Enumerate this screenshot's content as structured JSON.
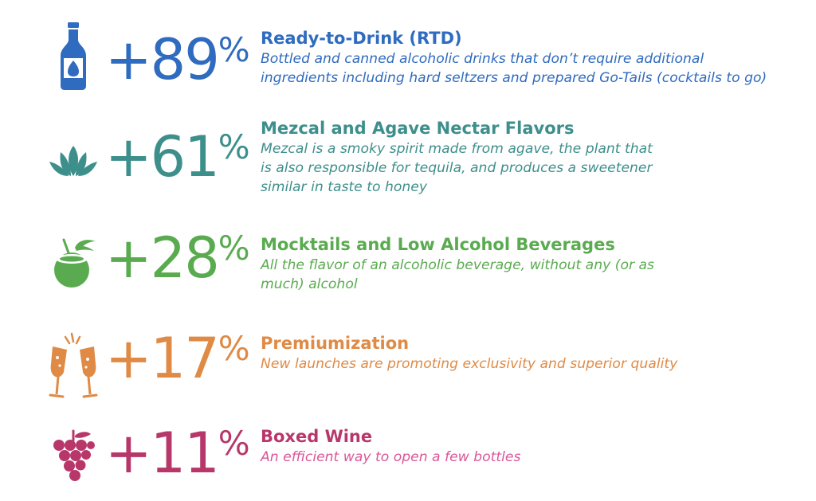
{
  "colors": {
    "rtd": "#2f6bbf",
    "mezcal": "#3d8f8c",
    "mocktails": "#5aab4f",
    "premium": "#df8a45",
    "wine": "#b8376a",
    "wine_desc": "#d9569a"
  },
  "trends": [
    {
      "icon": "bottle-icon",
      "value": "+89",
      "unit": "%",
      "title": "Ready-to-Drink (RTD)",
      "description": "Bottled and canned alcoholic drinks that don’t require additional ingredients including hard seltzers and prepared Go-Tails (cocktails to go)"
    },
    {
      "icon": "agave-icon",
      "value": "+61",
      "unit": "%",
      "title": "Mezcal and Agave Nectar Flavors",
      "description": "Mezcal is a smoky spirit made from agave, the plant that is also responsible for tequila, and produces a sweetener similar in taste to honey"
    },
    {
      "icon": "coconut-drink-icon",
      "value": "+28",
      "unit": "%",
      "title": "Mocktails and Low Alcohol Beverages",
      "description": "All the flavor of an alcoholic beverage, without any (or as much) alcohol"
    },
    {
      "icon": "champagne-toast-icon",
      "value": "+17",
      "unit": "%",
      "title": "Premiumization",
      "description": "New launches are promoting exclusivity and superior quality"
    },
    {
      "icon": "grapes-icon",
      "value": "+11",
      "unit": "%",
      "title": "Boxed Wine",
      "description": "An efficient way to open a few bottles"
    }
  ]
}
